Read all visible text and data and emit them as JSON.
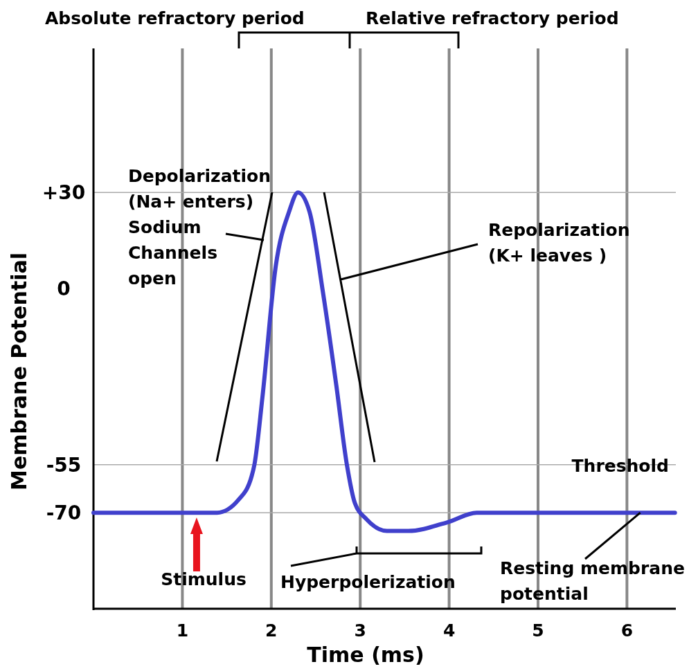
{
  "chart_data": {
    "type": "line",
    "xlabel": "Time (ms)",
    "ylabel": "Membrane Potential",
    "xlim": [
      0,
      6.55
    ],
    "ylim": [
      -100,
      75
    ],
    "xticks": [
      1,
      2,
      3,
      4,
      5,
      6
    ],
    "yticks": [
      {
        "value": 30,
        "label": "+30"
      },
      0,
      -55,
      -70
    ],
    "grid": "x",
    "series": [
      {
        "color": "#4040cc",
        "x": [
          0,
          1.39,
          1.63,
          1.78,
          1.81,
          1.9,
          2.05,
          2.2,
          2.3,
          2.43,
          2.58,
          2.73,
          2.85,
          2.94,
          3.07,
          3.3,
          3.54,
          3.98,
          4.31,
          6.54
        ],
        "values": [
          -70,
          -70,
          -66,
          -58.5,
          -55,
          -34,
          7,
          24,
          30,
          24,
          -1,
          -30,
          -55,
          -67,
          -72,
          -75.7,
          -75.7,
          -73,
          -70,
          -70
        ]
      }
    ],
    "ref_lines": [
      {
        "axis": "y",
        "value": 30,
        "color": "#aaaaaa"
      },
      {
        "axis": "y",
        "value": -55,
        "label": "Threshold",
        "color": "#aaaaaa"
      },
      {
        "axis": "y",
        "value": -70,
        "color": "#aaaaaa"
      }
    ],
    "annotations": [
      "Absolute refractory period",
      "Relative refractory period",
      "Depolarization\n(Na+ enters)\nSodium\nChannels\nopen",
      "Repolarization\n(K+ leaves )",
      {
        "text": "Stimulus",
        "x": 1.16,
        "y": -71.5
      },
      "Hyperpolerization",
      {
        "text": "Resting membrane\npotential",
        "x": 6.15,
        "y": -70
      }
    ]
  }
}
